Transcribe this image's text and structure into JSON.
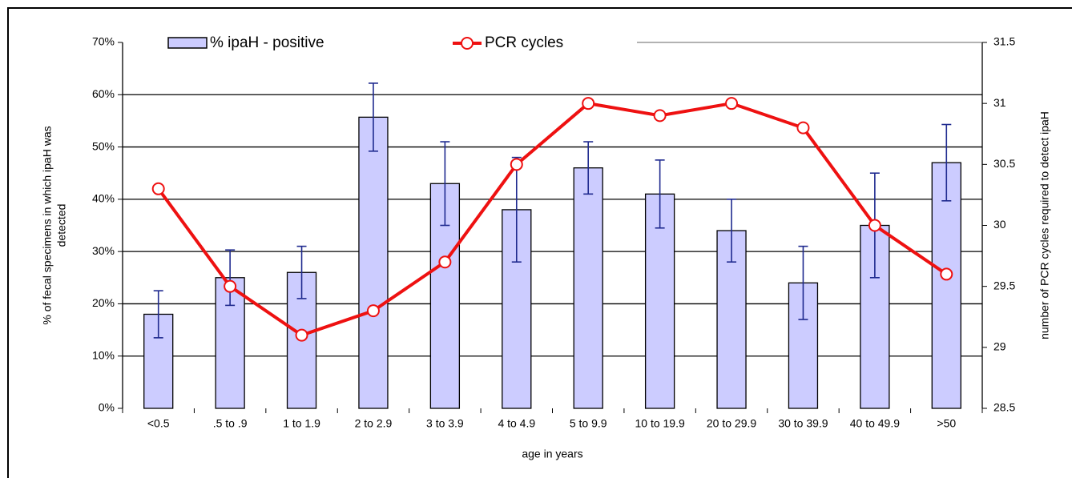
{
  "chart_data": {
    "type": "bar-line",
    "xlabel": "age in years",
    "ylabel": [
      "% of fecal specimens in which ipaH was",
      "detected"
    ],
    "y2label": "number of PCR cycles required to detect ipaH",
    "categories": [
      "<0.5",
      ".5 to .9",
      "1 to 1.9",
      "2 to 2.9",
      "3 to 3.9",
      "4 to 4.9",
      "5 to 9.9",
      "10 to 19.9",
      "20 to 29.9",
      "30 to 39.9",
      "40 to 49.9",
      ">50"
    ],
    "series": [
      {
        "name": "% ipaH - positive",
        "type": "bar",
        "color": "#ccccff",
        "values": [
          18,
          25,
          26,
          55.7,
          43,
          38,
          46,
          41,
          34,
          24,
          35,
          47
        ],
        "errors": [
          4.5,
          5.3,
          5,
          6.5,
          8,
          10,
          5,
          6.5,
          6,
          7,
          10,
          7.3
        ],
        "error_color": "#1f2a8f"
      },
      {
        "name": "PCR cycles",
        "type": "line",
        "axis": "y2",
        "color": "#ee1111",
        "values": [
          30.3,
          29.5,
          29.1,
          29.3,
          29.7,
          30.5,
          31,
          30.9,
          31,
          30.8,
          30,
          29.6
        ]
      }
    ],
    "ylim": [
      0,
      70
    ],
    "yticks": [
      {
        "value": 0,
        "label": "0%"
      },
      {
        "value": 10,
        "label": "10%"
      },
      {
        "value": 20,
        "label": "20%"
      },
      {
        "value": 30,
        "label": "30%"
      },
      {
        "value": 40,
        "label": "40%"
      },
      {
        "value": 50,
        "label": "50%"
      },
      {
        "value": 60,
        "label": "60%"
      },
      {
        "value": 70,
        "label": "70%"
      }
    ],
    "y2lim": [
      28.5,
      31.5
    ],
    "y2ticks": [
      28.5,
      29,
      29.5,
      30,
      30.5,
      31,
      31.5
    ],
    "grid": true
  }
}
